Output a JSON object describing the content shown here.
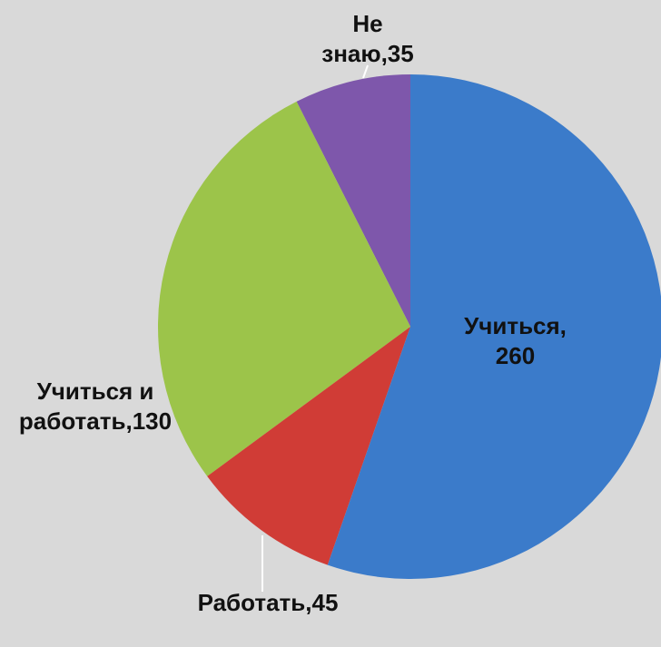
{
  "chart_data": {
    "type": "pie",
    "values": [
      260,
      45,
      130,
      35
    ],
    "value_labels": [
      "Учиться,260",
      "Работать,45",
      "Учиться и работать,130",
      "Не знаю,35"
    ],
    "colors": [
      "#3b7bca",
      "#d03c36",
      "#9cc44a",
      "#7e57ab"
    ]
  }
}
